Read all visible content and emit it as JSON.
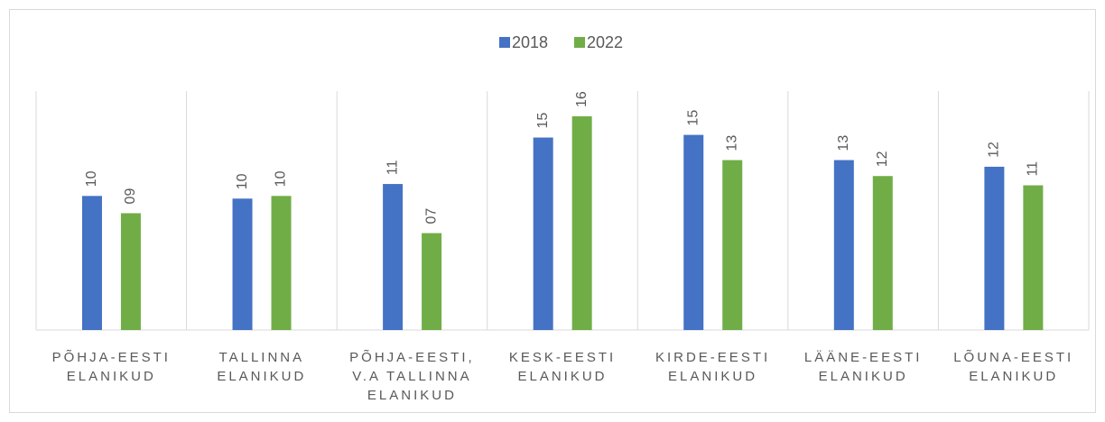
{
  "chart_data": {
    "type": "bar",
    "categories": [
      "PÕHJA-EESTI ELANIKUD",
      "TALLINNA ELANIKUD",
      "PÕHJA-EESTI, V.A TALLINNA ELANIKUD",
      "KESK-EESTI ELANIKUD",
      "KIRDE-EESTI ELANIKUD",
      "LÄÄNE-EESTI ELANIKUD",
      "LÕUNA-EESTI ELANIKUD"
    ],
    "series": [
      {
        "name": "2018",
        "color": "#4472c4",
        "values": [
          10.1,
          9.9,
          11.0,
          14.5,
          14.7,
          12.8,
          12.3
        ],
        "value_labels": [
          "10",
          "10",
          "11",
          "15",
          "15",
          "13",
          "12"
        ]
      },
      {
        "name": "2022",
        "color": "#70ad47",
        "values": [
          8.8,
          10.1,
          7.3,
          16.1,
          12.8,
          11.6,
          10.9
        ],
        "value_labels": [
          "09",
          "10",
          "07",
          "16",
          "13",
          "12",
          "11"
        ]
      }
    ],
    "ylim": [
      0,
      18
    ],
    "legend": "top"
  }
}
